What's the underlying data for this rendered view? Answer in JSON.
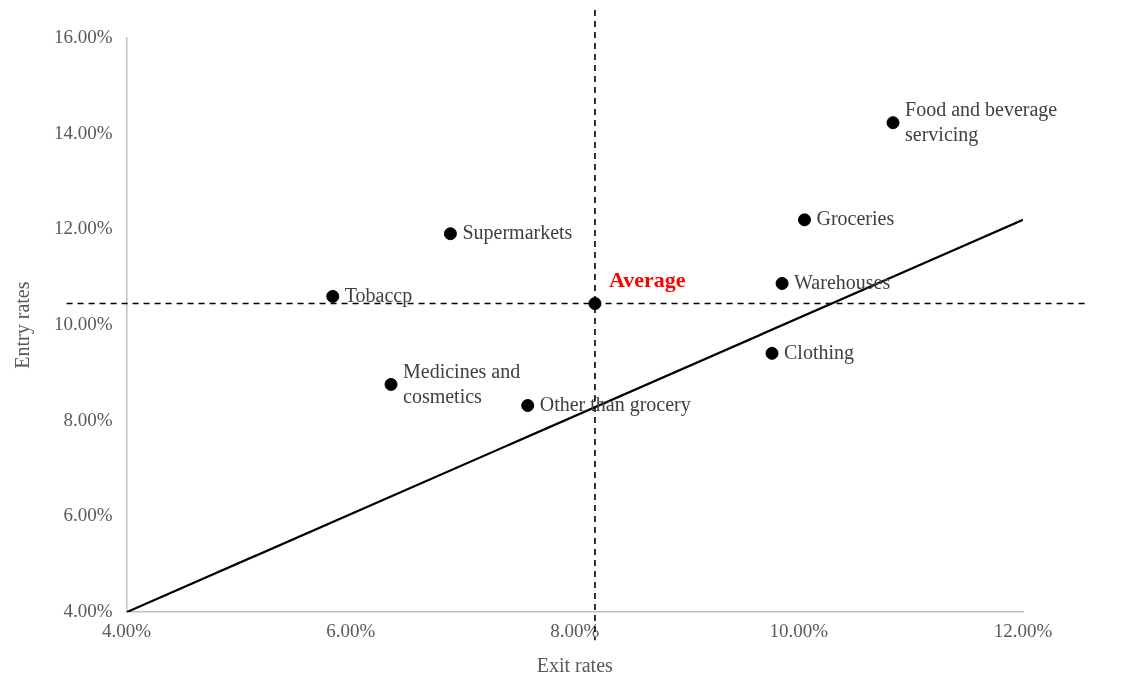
{
  "chart_data": {
    "type": "scatter",
    "xlabel": "Exit rates",
    "ylabel": "Entry rates",
    "xlim": [
      4,
      12
    ],
    "ylim": [
      4,
      16
    ],
    "xticks": [
      {
        "value": 4,
        "label": "4.00%"
      },
      {
        "value": 6,
        "label": "6.00%"
      },
      {
        "value": 8,
        "label": "8.00%"
      },
      {
        "value": 10,
        "label": "10.00%"
      },
      {
        "value": 12,
        "label": "12.00%"
      }
    ],
    "yticks": [
      {
        "value": 4,
        "label": "4.00%"
      },
      {
        "value": 6,
        "label": "6.00%"
      },
      {
        "value": 8,
        "label": "8.00%"
      },
      {
        "value": 10,
        "label": "10.00%"
      },
      {
        "value": 12,
        "label": "12.00%"
      },
      {
        "value": 14,
        "label": "14.00%"
      },
      {
        "value": 16,
        "label": "16.00%"
      }
    ],
    "grid": false,
    "legend": false,
    "marker": "circle",
    "series": [
      {
        "color": "#000000",
        "x": [
          10.84,
          10.05,
          6.89,
          5.84,
          9.85,
          9.76,
          6.36,
          7.58
        ],
        "values": [
          14.23,
          12.2,
          11.91,
          10.6,
          10.87,
          9.41,
          8.76,
          8.32
        ]
      },
      {
        "name": "Average",
        "color": "#000000",
        "x": [
          8.18
        ],
        "values": [
          10.45
        ]
      },
      {
        "type": "line",
        "color": "#000000",
        "marker": "none",
        "x": [
          4,
          12
        ],
        "values": [
          4,
          12.2
        ]
      }
    ],
    "ref_lines": [
      {
        "axis": "x",
        "value": 8.18,
        "line_style": "dashed",
        "color": "#000000"
      },
      {
        "axis": "y",
        "value": 10.45,
        "line_style": "dashed",
        "color": "#000000"
      }
    ],
    "annotations": [
      {
        "text": "Food and beverage servicing",
        "x": 10.84,
        "y": 14.23
      },
      {
        "text": "Groceries",
        "x": 10.05,
        "y": 12.2
      },
      {
        "text": "Supermarkets",
        "x": 6.89,
        "y": 11.91
      },
      {
        "text": "Tobaccp",
        "x": 5.84,
        "y": 10.6
      },
      {
        "text": "Warehouses",
        "x": 9.85,
        "y": 10.87
      },
      {
        "text": "Clothing",
        "x": 9.76,
        "y": 9.41
      },
      {
        "text": "Medicines and cosmetics",
        "x": 6.36,
        "y": 8.76
      },
      {
        "text": "Other than grocery",
        "x": 7.58,
        "y": 8.32
      }
    ]
  }
}
